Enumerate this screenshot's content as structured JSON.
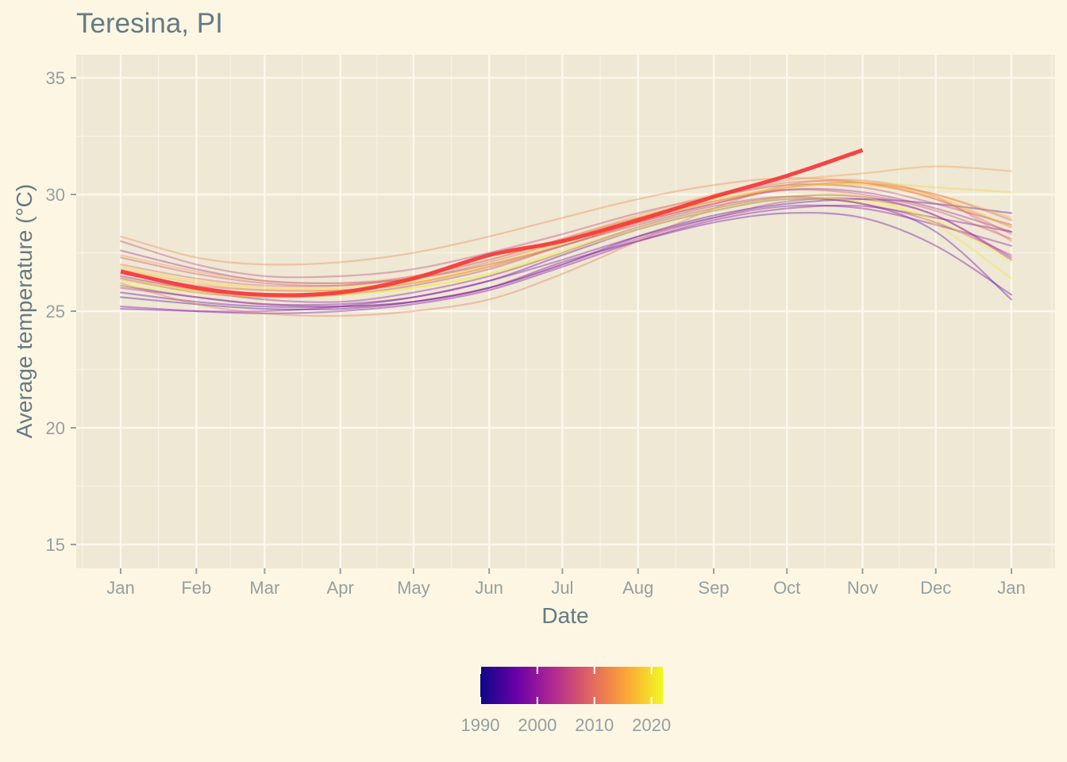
{
  "chart_data": {
    "type": "line",
    "title": "Teresina, PI",
    "xlabel": "Date",
    "ylabel": "Average temperature (°C)",
    "x_ticks": [
      "Jan",
      "Feb",
      "Mar",
      "Apr",
      "May",
      "Jun",
      "Jul",
      "Aug",
      "Sep",
      "Oct",
      "Nov",
      "Dec",
      "Jan"
    ],
    "y_ticks": [
      15,
      20,
      25,
      30,
      35
    ],
    "ylim": [
      14,
      36
    ],
    "grid": true,
    "legend": {
      "type": "colorbar",
      "position": "bottom",
      "ticks": [
        "1990",
        "2000",
        "2010",
        "2020"
      ],
      "colors": [
        "#0d0887",
        "#6a00a8",
        "#b12a90",
        "#e16462",
        "#fca636",
        "#f0f921"
      ]
    },
    "highlight_series": {
      "color": "#f73b3b",
      "x_months": [
        0,
        1,
        2,
        3,
        4,
        5,
        6,
        7,
        8,
        9,
        10
      ],
      "y": [
        26.7,
        26.0,
        25.7,
        25.8,
        26.4,
        27.4,
        28.0,
        28.9,
        29.9,
        30.8,
        31.9
      ]
    },
    "background_series_x_months": [
      0,
      1,
      2,
      3,
      4,
      5,
      6,
      7,
      8,
      9,
      10,
      11,
      12
    ],
    "background_series": [
      {
        "color": "#4b0a9e",
        "y": [
          25.6,
          25.3,
          25.1,
          25.1,
          25.4,
          26.0,
          27.0,
          28.2,
          29.1,
          29.6,
          29.8,
          29.6,
          29.2
        ]
      },
      {
        "color": "#5c06a5",
        "y": [
          26.1,
          25.6,
          25.3,
          25.3,
          25.6,
          26.3,
          27.4,
          28.5,
          29.3,
          29.8,
          29.6,
          28.4,
          25.5
        ]
      },
      {
        "color": "#6a00a8",
        "y": [
          25.8,
          25.4,
          25.2,
          25.2,
          25.4,
          26.0,
          27.1,
          28.0,
          28.8,
          29.2,
          29.0,
          27.8,
          25.7
        ]
      },
      {
        "color": "#7a02a8",
        "y": [
          25.2,
          25.0,
          24.9,
          25.0,
          25.3,
          25.9,
          26.9,
          28.0,
          28.9,
          29.4,
          29.5,
          29.0,
          28.4
        ]
      },
      {
        "color": "#8606a6",
        "y": [
          25.1,
          25.0,
          25.0,
          25.2,
          25.6,
          26.3,
          27.2,
          28.2,
          29.0,
          29.5,
          29.4,
          28.7,
          27.8
        ]
      },
      {
        "color": "#9511a1",
        "y": [
          26.5,
          25.9,
          25.5,
          25.4,
          25.8,
          26.5,
          27.5,
          28.6,
          29.4,
          29.9,
          29.9,
          29.1,
          27.3
        ]
      },
      {
        "color": "#a2229a",
        "y": [
          27.6,
          26.8,
          26.3,
          26.2,
          26.4,
          27.0,
          27.8,
          28.8,
          29.6,
          30.2,
          30.1,
          29.4,
          28.4
        ]
      },
      {
        "color": "#ad2e91",
        "y": [
          26.0,
          25.6,
          25.3,
          25.2,
          25.4,
          26.0,
          27.0,
          28.1,
          29.0,
          29.7,
          29.8,
          29.1,
          27.2
        ]
      },
      {
        "color": "#b5367f",
        "y": [
          26.4,
          25.8,
          25.6,
          25.7,
          26.1,
          26.8,
          27.8,
          28.7,
          29.5,
          29.9,
          29.6,
          28.8,
          27.4
        ]
      },
      {
        "color": "#c03f78",
        "y": [
          28.0,
          27.0,
          26.5,
          26.5,
          26.8,
          27.5,
          28.3,
          29.2,
          29.9,
          30.4,
          30.3,
          29.6,
          28.7
        ]
      },
      {
        "color": "#cc4a6e",
        "y": [
          27.3,
          26.6,
          26.2,
          26.1,
          26.5,
          27.2,
          28.1,
          29.0,
          29.7,
          30.2,
          30.0,
          29.3,
          28.1
        ]
      },
      {
        "color": "#d65d65",
        "y": [
          26.6,
          26.1,
          25.9,
          25.9,
          26.2,
          26.9,
          27.8,
          28.8,
          29.6,
          30.3,
          30.5,
          30.0,
          28.9
        ]
      },
      {
        "color": "#e16462",
        "y": [
          27.0,
          26.4,
          26.1,
          26.1,
          26.4,
          27.1,
          28.0,
          29.0,
          29.9,
          30.5,
          30.5,
          29.8,
          28.3
        ]
      },
      {
        "color": "#ea7757",
        "y": [
          26.2,
          25.3,
          24.9,
          24.8,
          25.0,
          25.5,
          26.6,
          28.0,
          29.4,
          30.4,
          30.6,
          29.9,
          28.0
        ]
      },
      {
        "color": "#f1844b",
        "y": [
          28.2,
          27.3,
          27.0,
          27.1,
          27.5,
          28.2,
          29.0,
          29.8,
          30.4,
          30.7,
          30.5,
          29.8,
          28.6
        ]
      },
      {
        "color": "#f89540",
        "y": [
          27.4,
          26.7,
          26.3,
          26.2,
          26.5,
          27.2,
          28.1,
          29.1,
          30.0,
          30.6,
          30.9,
          31.2,
          31.0
        ]
      },
      {
        "color": "#fca636",
        "y": [
          26.8,
          26.2,
          25.9,
          25.9,
          26.2,
          26.9,
          27.8,
          28.8,
          29.7,
          30.3,
          30.5,
          30.0,
          29.0
        ]
      },
      {
        "color": "#fdb72d",
        "y": [
          26.4,
          25.9,
          25.7,
          25.8,
          26.2,
          26.9,
          27.9,
          28.9,
          29.7,
          30.3,
          30.4,
          29.9,
          28.6
        ]
      },
      {
        "color": "#fbcf26",
        "y": [
          26.9,
          26.3,
          26.0,
          26.0,
          26.3,
          27.0,
          28.0,
          29.0,
          29.8,
          30.3,
          30.5,
          30.3,
          30.1
        ]
      },
      {
        "color": "#f6e626",
        "y": [
          26.3,
          25.9,
          25.7,
          25.7,
          26.0,
          26.6,
          27.6,
          28.6,
          29.4,
          29.9,
          29.9,
          28.7,
          26.4
        ]
      },
      {
        "color": "#f0f921",
        "y": [
          26.1,
          25.8,
          25.6,
          25.7,
          26.0,
          26.6,
          27.5,
          28.5,
          29.3,
          29.8,
          29.7,
          28.9,
          27.1
        ]
      }
    ]
  }
}
